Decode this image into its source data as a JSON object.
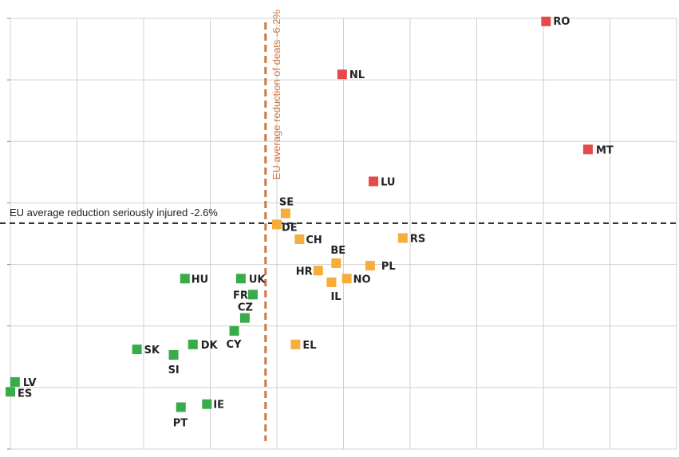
{
  "chart_data": {
    "type": "scatter",
    "title": "",
    "xlabel": "",
    "ylabel": "",
    "xlim": [
      0,
      10
    ],
    "ylim": [
      0,
      7
    ],
    "grid": true,
    "colors": {
      "green": "#3aab4a",
      "orange": "#f5ad3c",
      "red": "#e74848"
    },
    "reference_lines": {
      "horizontal": {
        "label": "EU average reduction seriously injured -2.6%",
        "y": 3.67
      },
      "vertical": {
        "label": "EU average reduction of deats -6.2%",
        "x": 3.83
      }
    },
    "points": [
      {
        "label": "RO",
        "x": 8.04,
        "y": 6.95,
        "group": "red"
      },
      {
        "label": "NL",
        "x": 4.98,
        "y": 6.09,
        "group": "red"
      },
      {
        "label": "MT",
        "x": 8.67,
        "y": 4.87,
        "group": "red"
      },
      {
        "label": "LU",
        "x": 5.45,
        "y": 4.35,
        "group": "red"
      },
      {
        "label": "SE",
        "x": 4.13,
        "y": 3.83,
        "group": "orange"
      },
      {
        "label": "DE",
        "x": 4.0,
        "y": 3.65,
        "group": "orange"
      },
      {
        "label": "CH",
        "x": 4.34,
        "y": 3.41,
        "group": "orange"
      },
      {
        "label": "RS",
        "x": 5.89,
        "y": 3.43,
        "group": "orange"
      },
      {
        "label": "BE",
        "x": 4.89,
        "y": 3.02,
        "group": "orange"
      },
      {
        "label": "PL",
        "x": 5.4,
        "y": 2.98,
        "group": "orange"
      },
      {
        "label": "HR",
        "x": 4.62,
        "y": 2.9,
        "group": "orange"
      },
      {
        "label": "NO",
        "x": 5.05,
        "y": 2.77,
        "group": "orange"
      },
      {
        "label": "IL",
        "x": 4.82,
        "y": 2.71,
        "group": "orange"
      },
      {
        "label": "EL",
        "x": 4.28,
        "y": 1.7,
        "group": "orange"
      },
      {
        "label": "HU",
        "x": 2.62,
        "y": 2.77,
        "group": "green"
      },
      {
        "label": "UK",
        "x": 3.46,
        "y": 2.77,
        "group": "green"
      },
      {
        "label": "FR",
        "x": 3.64,
        "y": 2.51,
        "group": "green"
      },
      {
        "label": "CZ",
        "x": 3.52,
        "y": 2.13,
        "group": "green"
      },
      {
        "label": "CY",
        "x": 3.36,
        "y": 1.92,
        "group": "green"
      },
      {
        "label": "DK",
        "x": 2.74,
        "y": 1.7,
        "group": "green"
      },
      {
        "label": "SK",
        "x": 1.9,
        "y": 1.62,
        "group": "green"
      },
      {
        "label": "SI",
        "x": 2.45,
        "y": 1.53,
        "group": "green"
      },
      {
        "label": "LV",
        "x": 0.07,
        "y": 1.09,
        "group": "green"
      },
      {
        "label": "ES",
        "x": 0.0,
        "y": 0.93,
        "group": "green"
      },
      {
        "label": "IE",
        "x": 2.95,
        "y": 0.73,
        "group": "green"
      },
      {
        "label": "PT",
        "x": 2.56,
        "y": 0.68,
        "group": "green"
      }
    ]
  }
}
